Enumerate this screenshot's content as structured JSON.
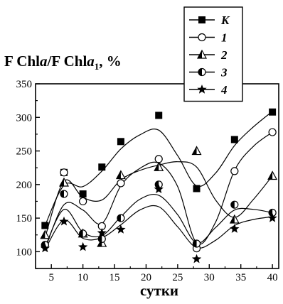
{
  "chart_data": {
    "type": "scatter",
    "title": "",
    "ylabel": {
      "pre": "F Chl",
      "italic_a": "a",
      "mid": "/F Chl",
      "italic_a2": "a",
      "sub": "1",
      "post": ", %"
    },
    "xlabel": "сутки",
    "xlim": [
      2.5,
      41
    ],
    "ylim": [
      75,
      350
    ],
    "xticks": [
      5,
      10,
      15,
      20,
      25,
      30,
      35,
      40
    ],
    "yticks": [
      100,
      150,
      200,
      250,
      300,
      350
    ],
    "grid": false,
    "legend_position": "top-right",
    "series": [
      {
        "name": "K",
        "marker": "square",
        "points": [
          [
            4,
            139
          ],
          [
            7,
            218
          ],
          [
            10,
            186
          ],
          [
            13,
            226
          ],
          [
            16,
            264
          ],
          [
            22,
            303
          ],
          [
            28,
            194
          ],
          [
            34,
            267
          ],
          [
            40,
            308
          ]
        ],
        "trend": [
          [
            4,
            139
          ],
          [
            7,
            199
          ],
          [
            10,
            197
          ],
          [
            13,
            220
          ],
          [
            16,
            253
          ],
          [
            19,
            274
          ],
          [
            22,
            281
          ],
          [
            25,
            243
          ],
          [
            28,
            198
          ],
          [
            31,
            217
          ],
          [
            34,
            258
          ],
          [
            37,
            286
          ],
          [
            40,
            309
          ]
        ]
      },
      {
        "name": "1",
        "marker": "circle-open",
        "points": [
          [
            4,
            110
          ],
          [
            7,
            218
          ],
          [
            10,
            175
          ],
          [
            13,
            138
          ],
          [
            16,
            202
          ],
          [
            22,
            238
          ],
          [
            28,
            105
          ],
          [
            34,
            220
          ],
          [
            40,
            278
          ]
        ],
        "trend": [
          [
            4,
            104
          ],
          [
            7,
            170
          ],
          [
            10,
            162
          ],
          [
            13,
            142
          ],
          [
            16,
            198
          ],
          [
            19,
            224
          ],
          [
            22,
            232
          ],
          [
            25,
            197
          ],
          [
            28,
            113
          ],
          [
            31,
            144
          ],
          [
            34,
            221
          ],
          [
            37,
            257
          ],
          [
            40,
            278
          ]
        ]
      },
      {
        "name": "2",
        "marker": "triangle-half",
        "points": [
          [
            4,
            125
          ],
          [
            7,
            203
          ],
          [
            10,
            127
          ],
          [
            13,
            113
          ],
          [
            16,
            214
          ],
          [
            22,
            226
          ],
          [
            28,
            250
          ],
          [
            34,
            148
          ],
          [
            40,
            213
          ]
        ],
        "trend": [
          [
            4,
            121
          ],
          [
            7,
            205
          ],
          [
            10,
            181
          ],
          [
            13,
            177
          ],
          [
            16,
            207
          ],
          [
            19,
            221
          ],
          [
            22,
            229
          ],
          [
            25,
            234
          ],
          [
            28,
            226
          ],
          [
            31,
            177
          ],
          [
            34,
            151
          ],
          [
            37,
            178
          ],
          [
            40,
            213
          ]
        ]
      },
      {
        "name": "3",
        "marker": "circle-half",
        "points": [
          [
            4,
            110
          ],
          [
            7,
            186
          ],
          [
            10,
            127
          ],
          [
            13,
            119
          ],
          [
            16,
            150
          ],
          [
            22,
            200
          ],
          [
            28,
            112
          ],
          [
            34,
            170
          ],
          [
            40,
            158
          ]
        ],
        "trend": [
          [
            4,
            107
          ],
          [
            7,
            163
          ],
          [
            10,
            129
          ],
          [
            13,
            124
          ],
          [
            16,
            152
          ],
          [
            19,
            178
          ],
          [
            22,
            184
          ],
          [
            25,
            155
          ],
          [
            28,
            113
          ],
          [
            31,
            136
          ],
          [
            34,
            162
          ],
          [
            37,
            163
          ],
          [
            40,
            158
          ]
        ]
      },
      {
        "name": "4",
        "marker": "star",
        "points": [
          [
            4,
            105
          ],
          [
            7,
            145
          ],
          [
            10,
            107
          ],
          [
            13,
            128
          ],
          [
            16,
            133
          ],
          [
            22,
            193
          ],
          [
            28,
            89
          ],
          [
            34,
            134
          ],
          [
            40,
            150
          ]
        ],
        "trend": [
          [
            4,
            103
          ],
          [
            7,
            147
          ],
          [
            10,
            120
          ],
          [
            13,
            121
          ],
          [
            16,
            140
          ],
          [
            19,
            162
          ],
          [
            22,
            167
          ],
          [
            25,
            137
          ],
          [
            28,
            106
          ],
          [
            31,
            117
          ],
          [
            34,
            139
          ],
          [
            37,
            148
          ],
          [
            40,
            152
          ]
        ]
      }
    ]
  }
}
